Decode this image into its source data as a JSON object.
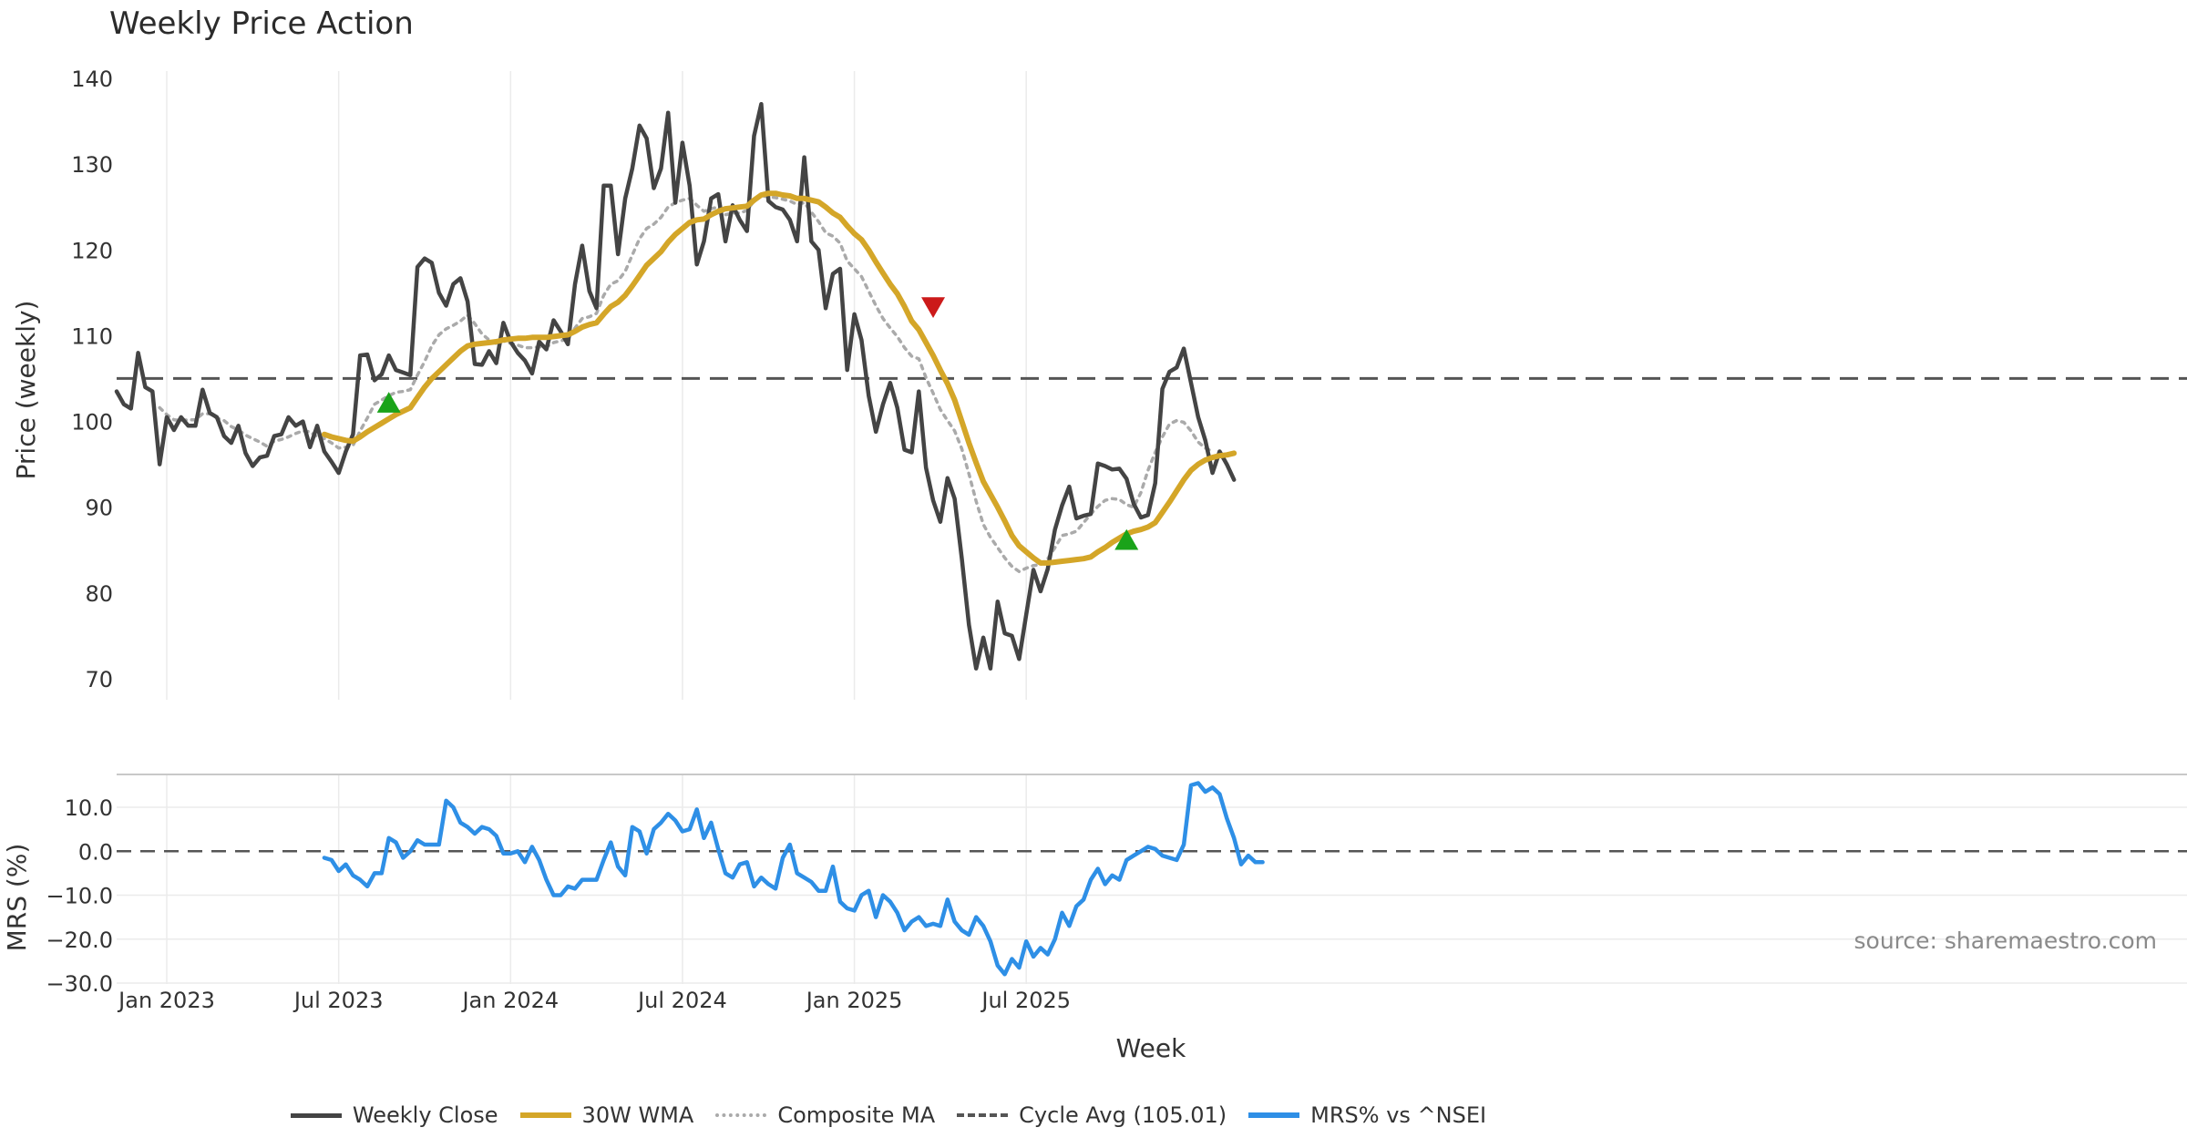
{
  "title": "Weekly Price Action",
  "source_note": "source: sharemaestro.com",
  "colors": {
    "close": "#444444",
    "wma": "#d4a628",
    "composite": "#aaaaaa",
    "cycle": "#555555",
    "mrs": "#2e8fe6",
    "buy_marker": "#1aa31a",
    "sell_marker": "#cc1a1a",
    "grid": "#ebebeb"
  },
  "legend": {
    "close": "Weekly Close",
    "wma": "30W WMA",
    "composite": "Composite MA",
    "cycle": "Cycle Avg (105.01)",
    "mrs": "MRS% vs ^NSEI"
  },
  "chart_data": [
    {
      "type": "line",
      "panel": "price",
      "title": "Weekly Price Action",
      "ylabel": "Price (weekly)",
      "ylim": [
        67,
        141
      ],
      "yticks": [
        70,
        80,
        90,
        100,
        110,
        120,
        130,
        140
      ],
      "grid": "vertical",
      "cycle_avg": 105.01,
      "series": [
        {
          "name": "Weekly Close",
          "values": [
            103.5,
            102,
            101.5,
            108,
            104,
            103.5,
            95,
            100.5,
            99,
            100.5,
            99.5,
            99.5,
            103.7,
            101,
            100.5,
            98.3,
            97.5,
            99.5,
            96.3,
            94.8,
            95.8,
            96,
            98.3,
            98.5,
            100.5,
            99.5,
            100,
            97,
            99.5,
            96.5,
            95.3,
            94,
            96.5,
            98.5,
            107.7,
            107.8,
            104.8,
            105.5,
            107.7,
            106,
            105.7,
            105.4,
            118,
            119,
            118.5,
            115,
            113.5,
            116,
            116.7,
            114,
            106.7,
            106.6,
            108.2,
            106.8,
            111.5,
            109.3,
            108,
            107.1,
            105.6,
            109.3,
            108.4,
            111.8,
            110.5,
            109,
            116,
            120.5,
            115.2,
            113.2,
            127.5,
            127.5,
            119.5,
            126,
            129.5,
            134.5,
            133,
            127.2,
            129.5,
            136,
            125.5,
            132.5,
            127.5,
            118.3,
            121,
            126,
            126.5,
            121,
            125.2,
            123.5,
            122.2,
            133.3,
            137,
            125.7,
            125,
            124.7,
            123.5,
            121,
            130.8,
            121,
            120,
            113.2,
            117.2,
            117.8,
            106,
            112.5,
            109.5,
            103,
            98.8,
            102,
            104.5,
            101.6,
            96.7,
            96.4,
            103.5,
            94.6,
            90.8,
            88.3,
            93.4,
            91,
            84,
            76.3,
            71.2,
            74.8,
            71.2,
            79,
            75.3,
            75,
            72.3,
            77.5,
            82.7,
            80.2,
            82.8,
            87.4,
            90.2,
            92.4,
            88.7,
            89,
            89.2,
            95.1,
            94.8,
            94.4,
            94.5,
            93.3,
            90.4,
            88.8,
            89.1,
            92.8,
            103.8,
            105.8,
            106.3,
            108.5,
            104.5,
            100.5,
            97.8,
            94,
            96.5,
            95,
            93.2
          ]
        },
        {
          "name": "30W WMA",
          "values": [
            null,
            null,
            null,
            null,
            null,
            null,
            null,
            null,
            null,
            null,
            null,
            null,
            null,
            null,
            null,
            null,
            null,
            null,
            null,
            null,
            null,
            null,
            null,
            null,
            null,
            null,
            null,
            null,
            null,
            98.5,
            98.2,
            98,
            97.8,
            97.7,
            98.2,
            98.8,
            99.3,
            99.8,
            100.3,
            100.8,
            101.2,
            101.6,
            102.8,
            104,
            105,
            105.8,
            106.6,
            107.4,
            108.2,
            108.8,
            109,
            109.1,
            109.2,
            109.3,
            109.5,
            109.6,
            109.7,
            109.7,
            109.8,
            109.8,
            109.8,
            109.9,
            110,
            110.1,
            110.5,
            111,
            111.3,
            111.5,
            112.5,
            113.4,
            113.9,
            114.7,
            115.8,
            117,
            118.2,
            119,
            119.8,
            120.9,
            121.8,
            122.5,
            123.2,
            123.5,
            123.6,
            124.1,
            124.5,
            124.8,
            124.9,
            125,
            125.1,
            125.8,
            126.4,
            126.6,
            126.6,
            126.4,
            126.3,
            126,
            126,
            125.8,
            125.6,
            125,
            124.3,
            123.8,
            122.8,
            121.9,
            121.2,
            120,
            118.6,
            117.3,
            116,
            114.9,
            113.4,
            111.7,
            110.7,
            109.2,
            107.7,
            106,
            104.4,
            102.5,
            100,
            97.5,
            95.2,
            93,
            91.5,
            90,
            88.4,
            86.7,
            85.5,
            84.8,
            84.1,
            83.5,
            83.5,
            83.6,
            83.7,
            83.8,
            83.9,
            84,
            84.2,
            84.8,
            85.3,
            85.9,
            86.4,
            86.9,
            87.2,
            87.4,
            87.7,
            88.2,
            89.4,
            90.6,
            91.9,
            93.2,
            94.3,
            95,
            95.5,
            95.8,
            96,
            96.1,
            96.3
          ]
        },
        {
          "name": "Composite MA",
          "values": [
            null,
            null,
            null,
            null,
            null,
            null,
            101.6,
            100.8,
            100.2,
            100.1,
            100.2,
            100.2,
            100.9,
            100.9,
            100.4,
            100.1,
            99.4,
            99,
            98.4,
            98,
            97.6,
            97.1,
            97.7,
            97.9,
            98.2,
            98.6,
            98.9,
            98.8,
            98.2,
            98,
            97.5,
            96.9,
            97,
            97.2,
            98.9,
            100.4,
            102,
            102.5,
            103,
            103.4,
            103.5,
            103.7,
            105.4,
            107,
            108.8,
            110.1,
            110.8,
            111.2,
            111.7,
            112.4,
            111.4,
            110.2,
            109.5,
            109.1,
            109.4,
            109.1,
            108.9,
            108.6,
            108.6,
            108.7,
            108.7,
            109.2,
            109.4,
            109.6,
            110.9,
            112,
            112.2,
            112.6,
            114.7,
            116,
            116.4,
            117.5,
            119.4,
            121.3,
            122.5,
            123,
            123.8,
            125,
            125.5,
            125.8,
            126,
            125.2,
            124.5,
            124.8,
            125,
            124.1,
            124.3,
            124.3,
            124.6,
            125.7,
            126.3,
            126.2,
            126.1,
            125.9,
            125.7,
            125.3,
            125.5,
            124.4,
            123.3,
            122,
            121.6,
            120.8,
            118.7,
            117.8,
            116.9,
            115.2,
            113.5,
            112,
            110.9,
            109.9,
            108.6,
            107.6,
            107.3,
            105.1,
            103.3,
            101.4,
            100.1,
            98.9,
            96.8,
            93.9,
            90.7,
            88,
            86.5,
            85.3,
            84.1,
            83.1,
            82.5,
            82.9,
            83.2,
            83.3,
            84,
            85.3,
            86.7,
            86.9,
            87.2,
            88.2,
            89.2,
            90.1,
            90.8,
            91,
            90.9,
            90.3,
            90,
            91.7,
            94.3,
            96.4,
            98.2,
            99.7,
            100.1,
            99.9,
            98.9,
            97.6,
            96.9,
            96.5
          ]
        },
        {
          "name": "Cycle Avg (105.01)",
          "values": [
            105.01
          ]
        }
      ],
      "markers": [
        {
          "type": "buy",
          "week_index": 38,
          "value": 102.2
        },
        {
          "type": "sell",
          "week_index": 114,
          "value": 113.3
        },
        {
          "type": "buy",
          "week_index": 141,
          "value": 86.2
        }
      ]
    },
    {
      "type": "line",
      "panel": "mrs",
      "ylabel": "MRS (%)",
      "xlabel": "Week",
      "ylim": [
        -30,
        17
      ],
      "yticks": [
        "10.0",
        "0.0",
        "−10.0",
        "−20.0",
        "−30.0"
      ],
      "ytick_values": [
        10,
        0,
        -10,
        -20,
        -30
      ],
      "zero_line": 0,
      "series": [
        {
          "name": "MRS% vs ^NSEI",
          "values": [
            null,
            null,
            null,
            null,
            null,
            null,
            null,
            null,
            null,
            null,
            null,
            null,
            null,
            null,
            null,
            null,
            null,
            null,
            null,
            null,
            null,
            null,
            null,
            null,
            null,
            null,
            null,
            null,
            null,
            -1.5,
            -2,
            -4.5,
            -3,
            -5.5,
            -6.5,
            -8,
            -5,
            -5,
            3,
            2,
            -1.5,
            0,
            2.5,
            1.5,
            1.5,
            1.5,
            11.5,
            10,
            6.5,
            5.5,
            4,
            5.5,
            5,
            3.5,
            -0.5,
            -0.5,
            0,
            -2.5,
            1,
            -2,
            -6.5,
            -10,
            -10,
            -8,
            -8.5,
            -6.5,
            -6.5,
            -6.5,
            -2,
            2,
            -3.5,
            -5.5,
            5.5,
            4.5,
            -0.5,
            5,
            6.5,
            8.5,
            7,
            4.5,
            5,
            9.5,
            3,
            6.5,
            0.5,
            -5,
            -6,
            -3,
            -2.5,
            -8,
            -6,
            -7.5,
            -8.5,
            -1.5,
            1.5,
            -5,
            -6,
            -7,
            -9,
            -9,
            -3.5,
            -11.5,
            -13,
            -13.5,
            -10,
            -9,
            -15,
            -10,
            -11.5,
            -14,
            -18,
            -16,
            -15,
            -17,
            -16.5,
            -17,
            -11,
            -16,
            -18,
            -19,
            -15,
            -17,
            -20.5,
            -26,
            -28,
            -24.5,
            -26.5,
            -20.5,
            -24,
            -22,
            -23.5,
            -20,
            -14,
            -17,
            -12.5,
            -11,
            -6.5,
            -4,
            -7.5,
            -5.5,
            -6.5,
            -2,
            -1,
            0,
            1,
            0.5,
            -1,
            -1.5,
            -2,
            1.5,
            15,
            15.5,
            13.5,
            14.5,
            13,
            7.5,
            3,
            -3,
            -1,
            -2.5,
            -2.5
          ]
        }
      ]
    },
    {
      "type": "axis",
      "xlabel": "Week",
      "xtick_labels": [
        "Jan 2023",
        "Jul 2023",
        "Jan 2024",
        "Jul 2024",
        "Jan 2025",
        "Jul 2025"
      ],
      "xtick_week_index": [
        7,
        31,
        55,
        79,
        103,
        127
      ]
    }
  ]
}
